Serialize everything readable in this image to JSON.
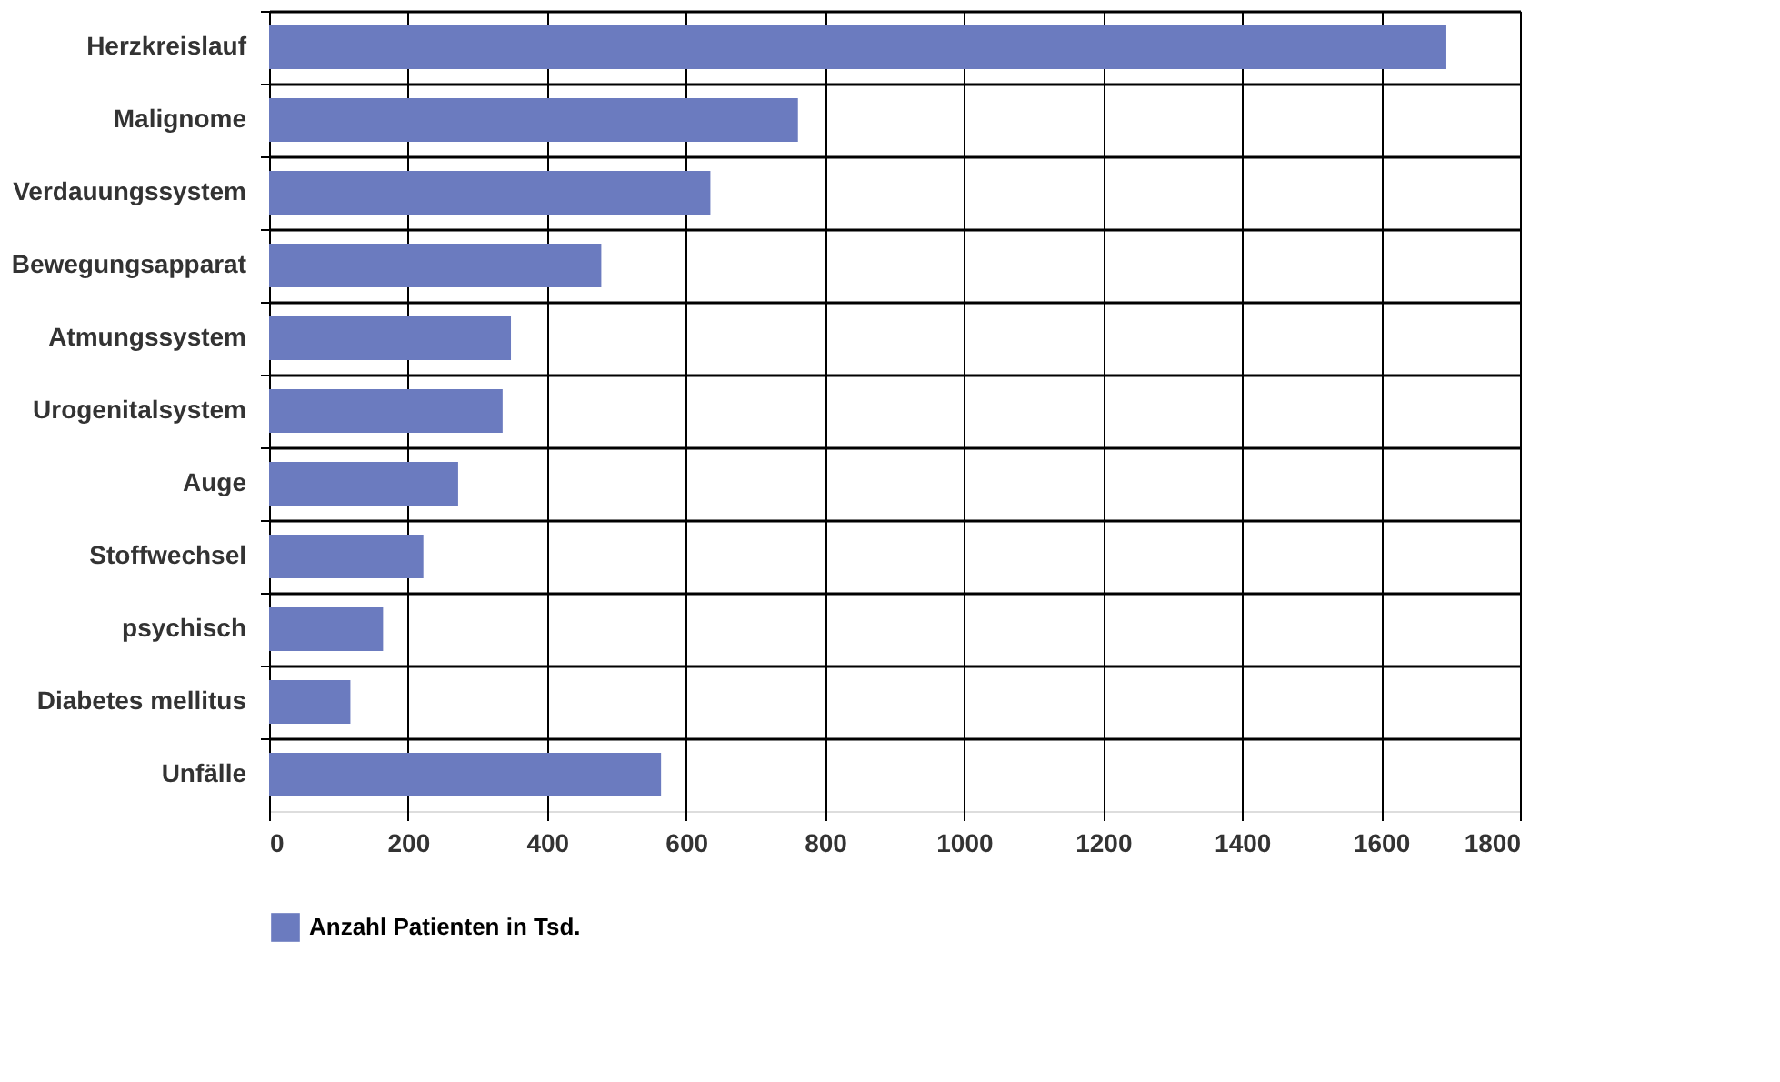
{
  "chart_data": {
    "type": "bar",
    "orientation": "horizontal",
    "categories": [
      "Herzkreislauf",
      "Malignome",
      "Verdauungssystem",
      "Bewegungsapparat",
      "Atmungssystem",
      "Urogenitalsystem",
      "Auge",
      "Stoffwechsel",
      "psychisch",
      "Diabetes mellitus",
      "Unfälle"
    ],
    "series": [
      {
        "name": "Anzahl Patienten in Tsd.",
        "color": "#6b7bbf",
        "values": [
          1694,
          761,
          635,
          478,
          348,
          336,
          272,
          222,
          164,
          117,
          564
        ]
      }
    ],
    "xlim": [
      0,
      1800
    ],
    "xticks": [
      0,
      200,
      400,
      600,
      800,
      1000,
      1200,
      1400,
      1600,
      1800
    ],
    "grid": true,
    "legend": "bottom"
  }
}
